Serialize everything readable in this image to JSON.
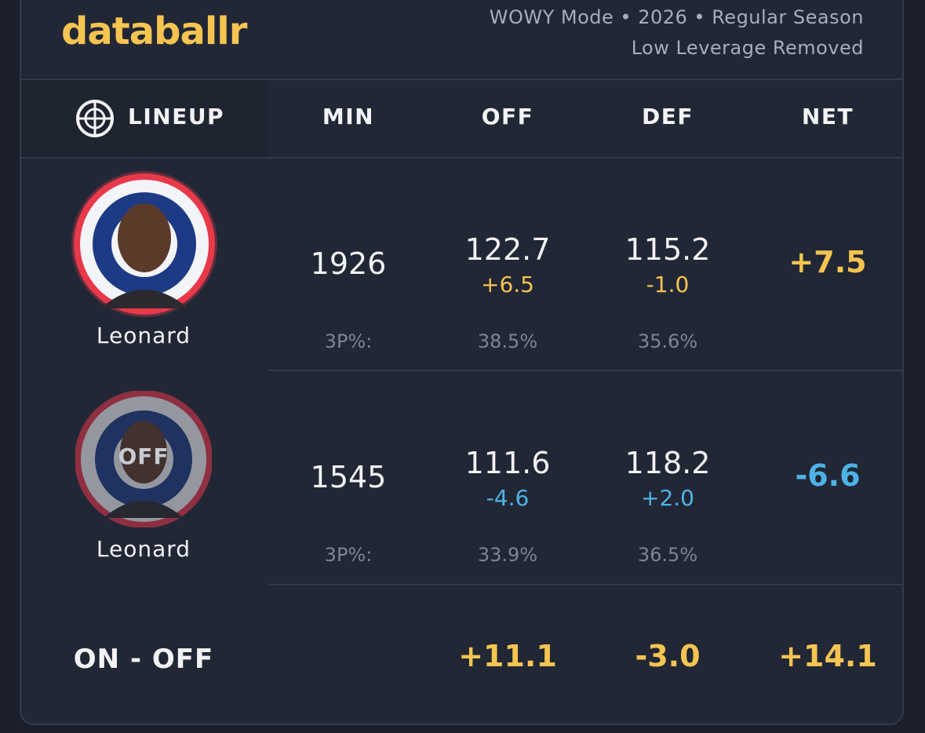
{
  "header": {
    "brand": "databallr",
    "mode": "WOWY Mode • 2026 • Regular Season",
    "filter": "Low Leverage Removed"
  },
  "table": {
    "columns": [
      "LINEUP",
      "MIN",
      "OFF",
      "DEF",
      "NET"
    ],
    "rows": [
      {
        "player": "Leonard",
        "min": "1926",
        "off": "122.7",
        "off_diff": "+6.5",
        "def": "115.2",
        "def_diff": "-1.0",
        "net": "+7.5",
        "three_label": "3P%:",
        "off_3p": "38.5%",
        "def_3p": "35.6%"
      },
      {
        "player": "Leonard",
        "badge": "OFF",
        "min": "1545",
        "off": "111.6",
        "off_diff": "-4.6",
        "def": "118.2",
        "def_diff": "+2.0",
        "net": "-6.6",
        "three_label": "3P%:",
        "off_3p": "33.9%",
        "def_3p": "36.5%"
      }
    ],
    "footer": {
      "label": "ON - OFF",
      "off": "+11.1",
      "def": "-3.0",
      "net": "+14.1"
    }
  }
}
